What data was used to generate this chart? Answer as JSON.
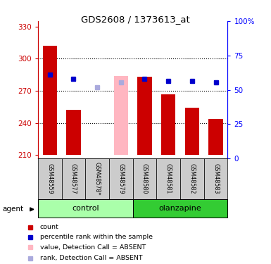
{
  "title": "GDS2608 / 1373613_at",
  "samples": [
    "GSM48559",
    "GSM48577",
    "GSM48578*",
    "GSM48579",
    "GSM48580",
    "GSM48581",
    "GSM48582",
    "GSM48583"
  ],
  "ylim_left": [
    207,
    335
  ],
  "ylim_right": [
    0,
    100
  ],
  "yticks_left": [
    210,
    240,
    270,
    300,
    330
  ],
  "yticks_right": [
    0,
    25,
    50,
    75,
    100
  ],
  "bar_baseline": 210,
  "bar_values": [
    312,
    252,
    null,
    null,
    283,
    267,
    254,
    244
  ],
  "bar_color": "#CC0000",
  "absent_bar_value": 284,
  "absent_bar_idx": 3,
  "absent_bar_color": "#FFB6C1",
  "rank_values": [
    285,
    281,
    null,
    null,
    281,
    279,
    279,
    278
  ],
  "rank_color": "#0000CC",
  "absent_rank_values": [
    null,
    null,
    273,
    278,
    null,
    null,
    null,
    null
  ],
  "absent_rank_color": "#AAAADD",
  "left_axis_color": "#CC0000",
  "right_axis_color": "#0000FF",
  "grid_dotted_at": [
    240,
    270,
    300
  ],
  "control_color": "#AAFFAA",
  "olanzapine_color": "#33CC33",
  "sample_box_color": "#CCCCCC"
}
